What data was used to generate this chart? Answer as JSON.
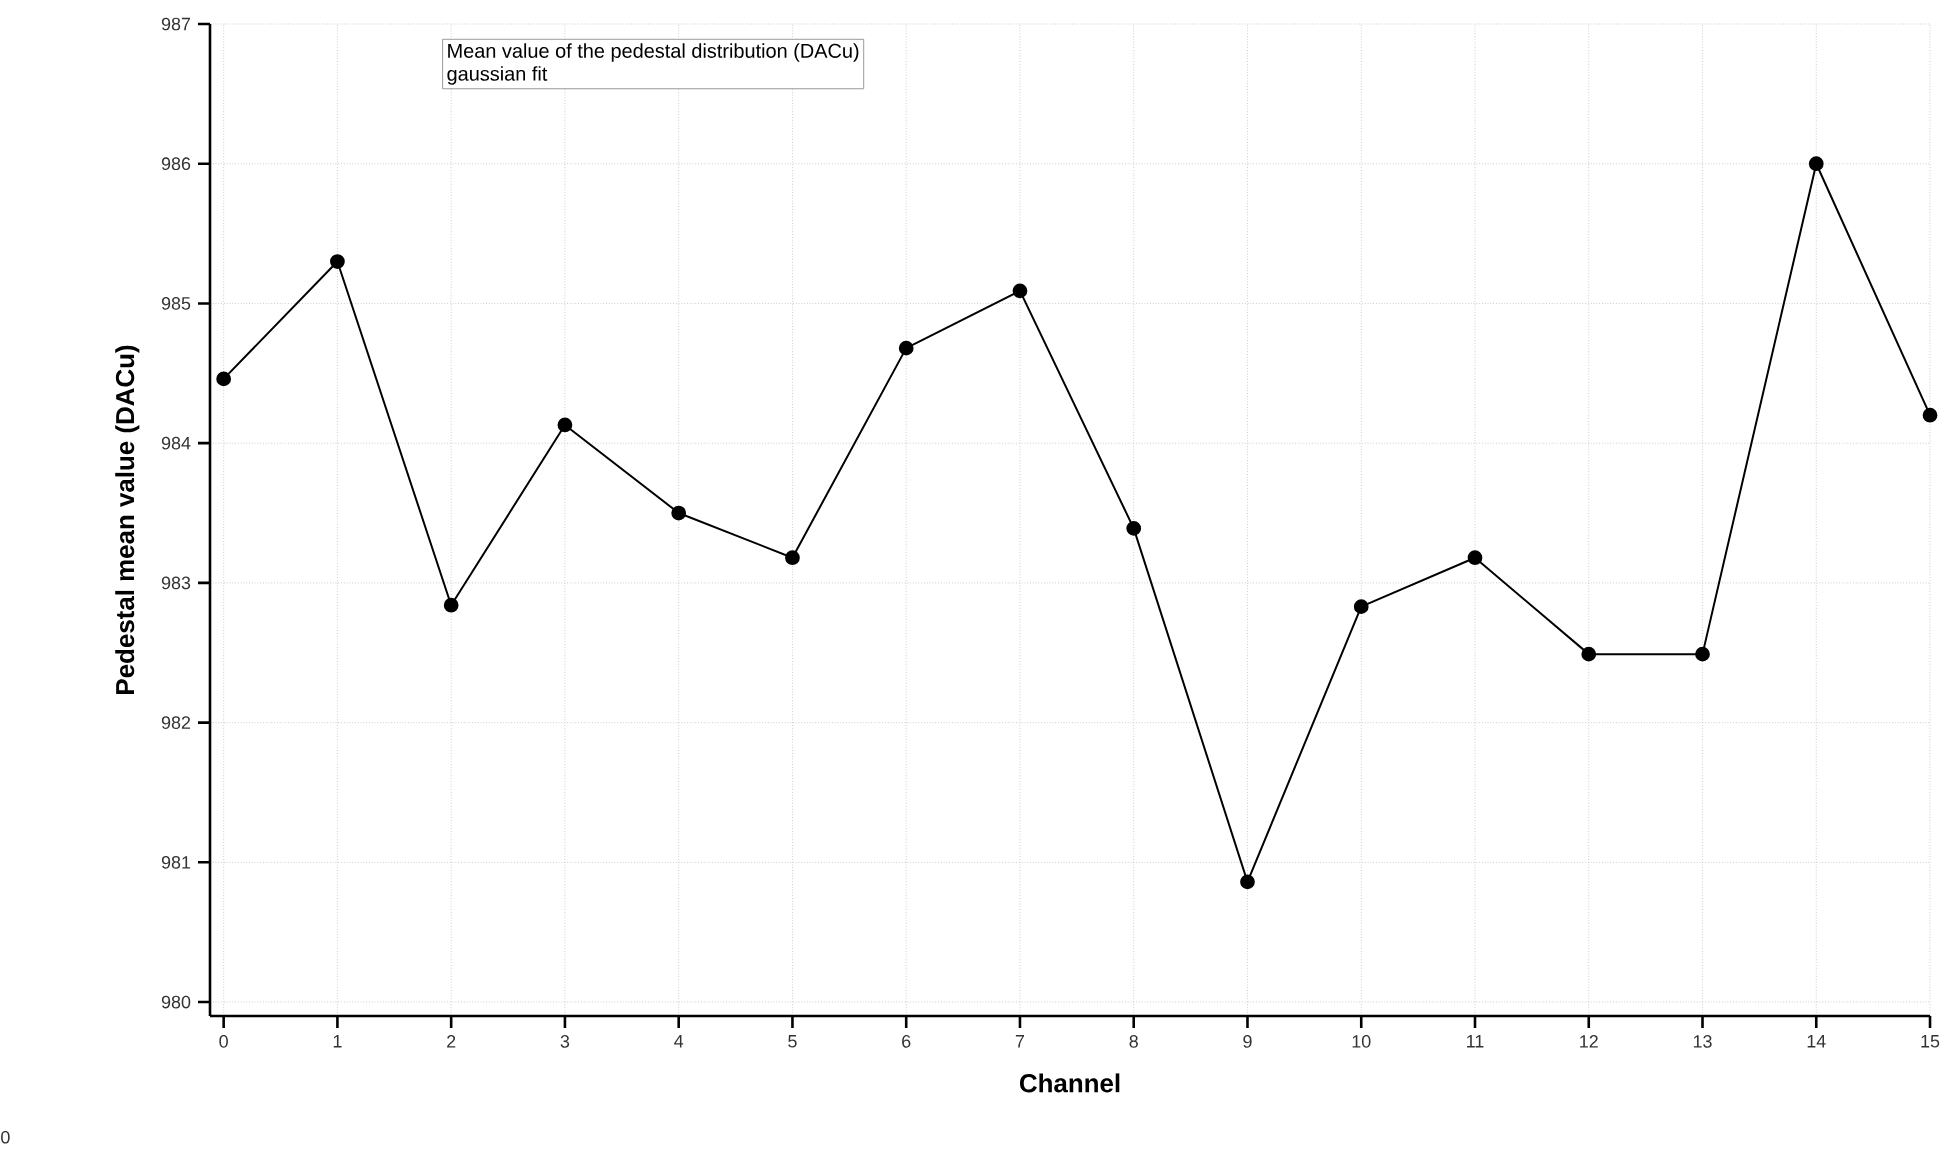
{
  "chart_data": {
    "type": "line",
    "title": "Mean value of the pedestal distribution (DACu)",
    "subtitle": "gaussian fit",
    "xlabel": "Channel",
    "ylabel": "Pedestal mean value (DACu)",
    "x": [
      0,
      1,
      2,
      3,
      4,
      5,
      6,
      7,
      8,
      9,
      10,
      11,
      12,
      13,
      14,
      15
    ],
    "series": [
      {
        "color": "#000000",
        "values": [
          984.46,
          985.3,
          982.84,
          984.13,
          983.5,
          983.18,
          984.68,
          985.09,
          983.39,
          980.86,
          982.83,
          983.18,
          982.49,
          982.49,
          986.0,
          984.2
        ]
      }
    ],
    "xlim": [
      -0.12,
      15
    ],
    "ylim": [
      979.9,
      987
    ],
    "xticks": [
      0,
      1,
      2,
      3,
      4,
      5,
      6,
      7,
      8,
      9,
      10,
      11,
      12,
      13,
      14,
      15
    ],
    "yticks": [
      980,
      981,
      982,
      983,
      984,
      985,
      986,
      987
    ],
    "grid": true,
    "marker": "circle",
    "line_style": "solid",
    "annotations": [
      "0"
    ]
  }
}
